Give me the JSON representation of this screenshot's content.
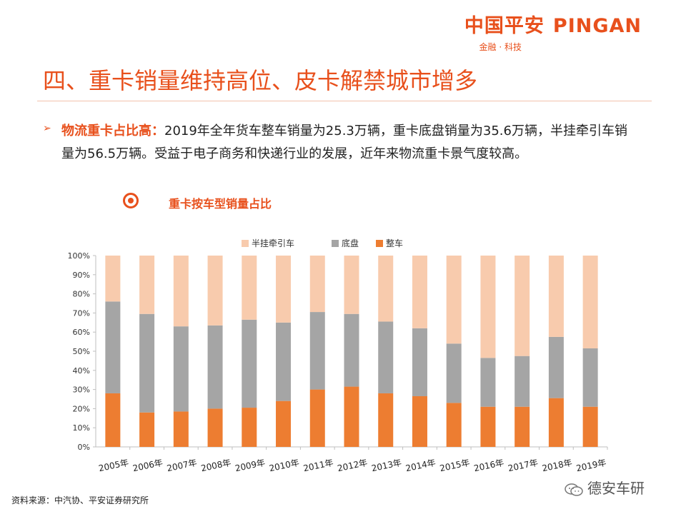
{
  "header": {
    "logo_cn": "中国平安",
    "logo_en": "PINGAN",
    "tagline": "金融 · 科技"
  },
  "title": "四、重卡销量维持高位、皮卡解禁城市增多",
  "bullet": {
    "lead": "物流重卡占比高：",
    "text": "2019年全年货车整车销量为25.3万辆，重卡底盘销量为35.6万辆，半挂牵引车销量为56.5万辆。受益于电子商务和快递行业的发展，近年来物流重卡景气度较高。"
  },
  "chart_heading": "重卡按车型销量占比",
  "chart_data": {
    "type": "bar",
    "stacked": true,
    "title": "重卡按车型销量占比",
    "categories": [
      "2005年",
      "2006年",
      "2007年",
      "2008年",
      "2009年",
      "2010年",
      "2011年",
      "2012年",
      "2013年",
      "2014年",
      "2015年",
      "2016年",
      "2017年",
      "2018年",
      "2019年"
    ],
    "series": [
      {
        "name": "整车",
        "color": "#ed7d31",
        "values": [
          28,
          18,
          18.5,
          20,
          20.5,
          24,
          30,
          31.5,
          28,
          26.5,
          23,
          21,
          21,
          25.5,
          21
        ]
      },
      {
        "name": "底盘",
        "color": "#a5a5a5",
        "values": [
          48,
          51.5,
          44.5,
          43.5,
          46,
          41,
          40.5,
          38,
          37.5,
          35.5,
          31,
          25.5,
          26.5,
          32,
          30.5
        ]
      },
      {
        "name": "半挂牵引车",
        "color": "#f8cbad",
        "values": [
          24,
          30.5,
          37,
          36.5,
          33.5,
          35,
          29.5,
          30.5,
          34.5,
          38,
          46,
          53.5,
          52.5,
          42.5,
          48.5
        ]
      }
    ],
    "legend_order": [
      "半挂牵引车",
      "底盘",
      "整车"
    ],
    "legend_position": "top-center",
    "ylim": [
      0,
      100
    ],
    "yticks": [
      "0%",
      "10%",
      "20%",
      "30%",
      "40%",
      "50%",
      "60%",
      "70%",
      "80%",
      "90%",
      "100%"
    ],
    "grid": false,
    "xlabel": "",
    "ylabel": ""
  },
  "source": "资料来源：中汽协、平安证券研究所",
  "watermark": "德安车研",
  "colors": {
    "accent": "#e8501c",
    "axis": "#bfbfbf"
  }
}
